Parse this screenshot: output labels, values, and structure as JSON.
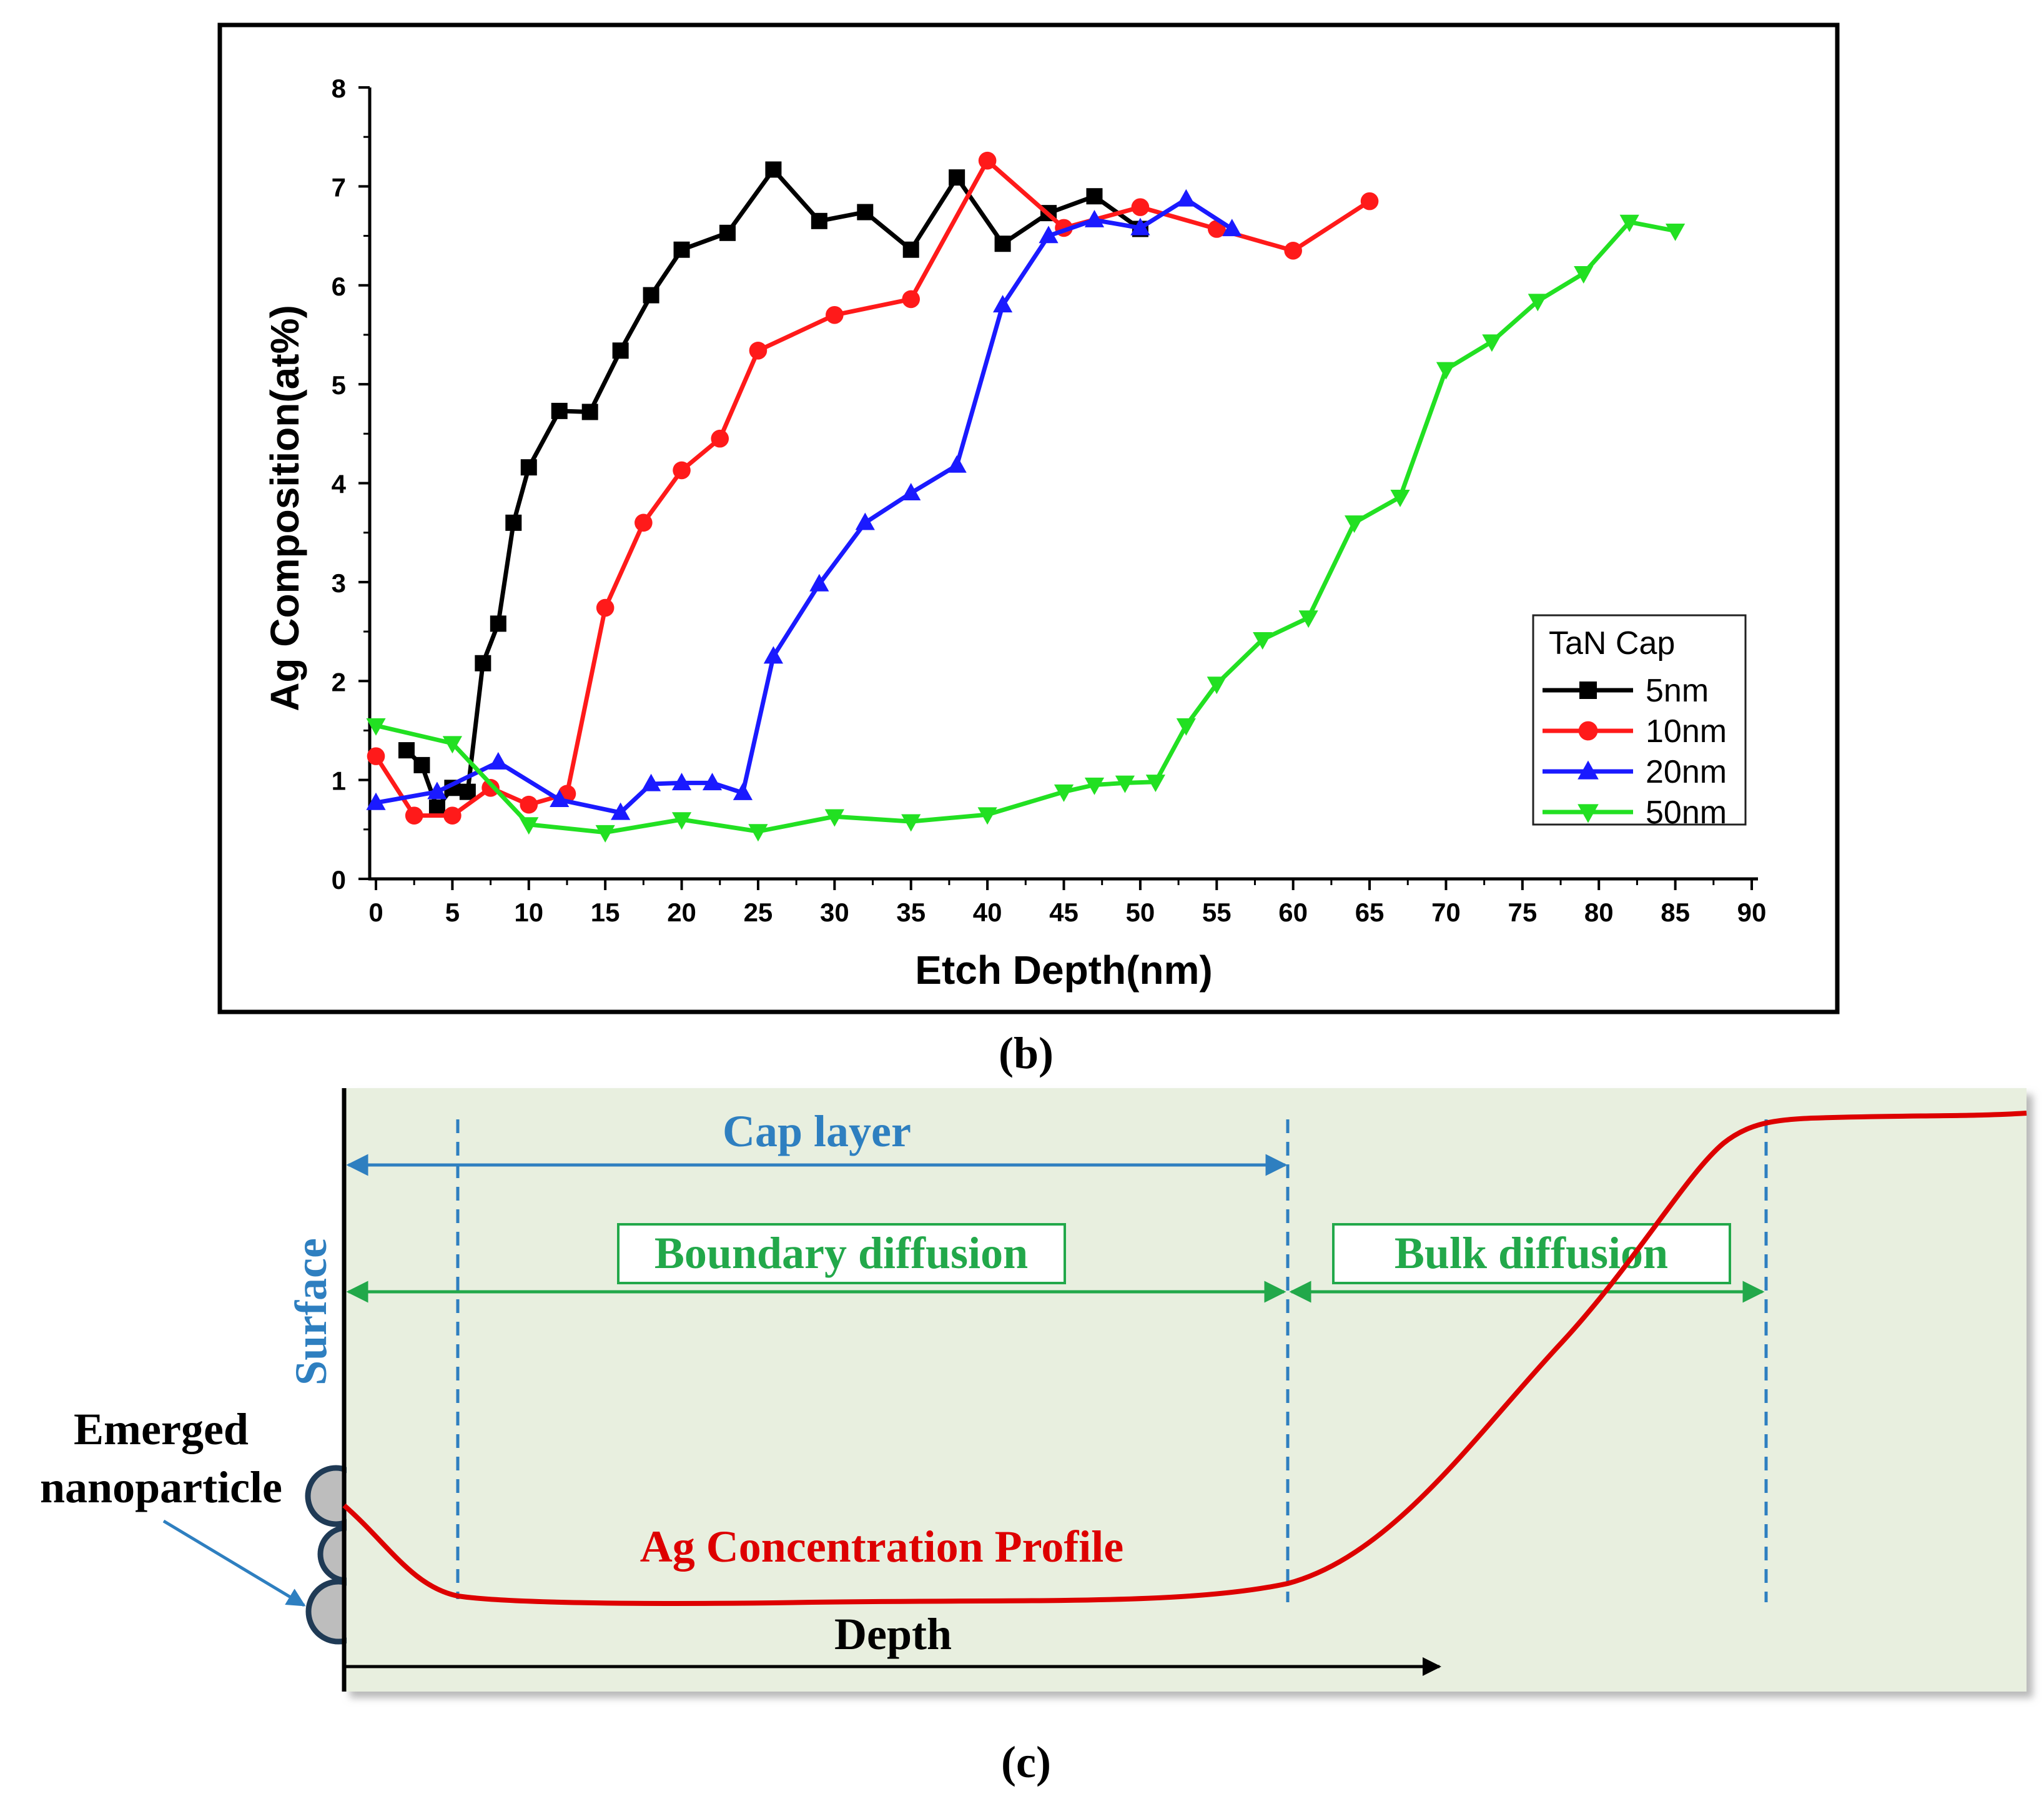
{
  "chart_data": [
    {
      "type": "line",
      "panel_label": "(b)",
      "title": "",
      "xlabel": "Etch Depth(nm)",
      "ylabel": "Ag Composition(at%)",
      "xlim": [
        0,
        90
      ],
      "ylim": [
        0,
        8
      ],
      "xticks": [
        0,
        5,
        10,
        15,
        20,
        25,
        30,
        35,
        40,
        45,
        50,
        55,
        60,
        65,
        70,
        75,
        80,
        85,
        90
      ],
      "yticks": [
        0,
        1,
        2,
        3,
        4,
        5,
        6,
        7,
        8
      ],
      "legend_title": "TaN Cap",
      "legend_position": "lower-right",
      "series": [
        {
          "name": "5nm",
          "color": "#000000",
          "marker": "square",
          "points": [
            [
              2,
              1.3
            ],
            [
              3,
              1.15
            ],
            [
              4,
              0.72
            ],
            [
              5,
              0.92
            ],
            [
              6,
              0.88
            ],
            [
              7,
              2.18
            ],
            [
              8,
              2.58
            ],
            [
              9,
              3.6
            ],
            [
              10,
              4.16
            ],
            [
              12,
              4.73
            ],
            [
              14,
              4.72
            ],
            [
              16,
              5.34
            ],
            [
              18,
              5.9
            ],
            [
              20,
              6.36
            ],
            [
              23,
              6.53
            ],
            [
              26,
              7.17
            ],
            [
              29,
              6.65
            ],
            [
              32,
              6.74
            ],
            [
              35,
              6.36
            ],
            [
              38,
              7.09
            ],
            [
              41,
              6.42
            ],
            [
              44,
              6.73
            ],
            [
              47,
              6.9
            ],
            [
              50,
              6.57
            ]
          ]
        },
        {
          "name": "10nm",
          "color": "#ff1a1a",
          "marker": "circle",
          "points": [
            [
              0,
              1.24
            ],
            [
              2.5,
              0.64
            ],
            [
              5,
              0.64
            ],
            [
              7.5,
              0.92
            ],
            [
              10,
              0.75
            ],
            [
              12.5,
              0.86
            ],
            [
              15,
              2.74
            ],
            [
              17.5,
              3.6
            ],
            [
              20,
              4.13
            ],
            [
              22.5,
              4.45
            ],
            [
              25,
              5.34
            ],
            [
              30,
              5.7
            ],
            [
              35,
              5.86
            ],
            [
              40,
              7.26
            ],
            [
              45,
              6.58
            ],
            [
              50,
              6.79
            ],
            [
              55,
              6.57
            ],
            [
              60,
              6.35
            ],
            [
              65,
              6.85
            ]
          ]
        },
        {
          "name": "20nm",
          "color": "#1a1aff",
          "marker": "triangle-up",
          "points": [
            [
              0,
              0.77
            ],
            [
              4,
              0.88
            ],
            [
              8,
              1.18
            ],
            [
              12,
              0.8
            ],
            [
              16,
              0.67
            ],
            [
              18,
              0.96
            ],
            [
              20,
              0.97
            ],
            [
              22,
              0.97
            ],
            [
              24,
              0.87
            ],
            [
              26,
              2.25
            ],
            [
              29,
              2.98
            ],
            [
              32,
              3.6
            ],
            [
              35,
              3.9
            ],
            [
              38,
              4.18
            ],
            [
              41,
              5.8
            ],
            [
              44,
              6.5
            ],
            [
              47,
              6.66
            ],
            [
              50,
              6.58
            ],
            [
              53,
              6.87
            ],
            [
              56,
              6.57
            ]
          ]
        },
        {
          "name": "50nm",
          "color": "#22e022",
          "marker": "triangle-down",
          "points": [
            [
              0,
              1.55
            ],
            [
              5,
              1.37
            ],
            [
              10,
              0.55
            ],
            [
              15,
              0.47
            ],
            [
              20,
              0.6
            ],
            [
              25,
              0.48
            ],
            [
              30,
              0.63
            ],
            [
              35,
              0.58
            ],
            [
              40,
              0.65
            ],
            [
              45,
              0.88
            ],
            [
              47,
              0.95
            ],
            [
              49,
              0.97
            ],
            [
              51,
              0.98
            ],
            [
              53,
              1.55
            ],
            [
              55,
              1.97
            ],
            [
              58,
              2.42
            ],
            [
              61,
              2.64
            ],
            [
              64,
              3.6
            ],
            [
              67,
              3.86
            ],
            [
              70,
              5.15
            ],
            [
              73,
              5.43
            ],
            [
              76,
              5.84
            ],
            [
              79,
              6.12
            ],
            [
              82,
              6.64
            ],
            [
              85,
              6.55
            ]
          ]
        }
      ]
    },
    {
      "type": "diagram",
      "panel_label": "(c)",
      "labels": {
        "surface": "Surface",
        "cap_layer": "Cap layer",
        "boundary_diffusion": "Boundary diffusion",
        "bulk_diffusion": "Bulk diffusion",
        "nanoparticle_line1": "Emerged",
        "nanoparticle_line2": "nanoparticle",
        "profile": "Ag Concentration Profile",
        "depth": "Depth"
      },
      "colors": {
        "background": "#e8efdf",
        "profile": "#dd0000",
        "cap_layer": "#2e7fc0",
        "diffusion": "#22a84a"
      }
    }
  ]
}
